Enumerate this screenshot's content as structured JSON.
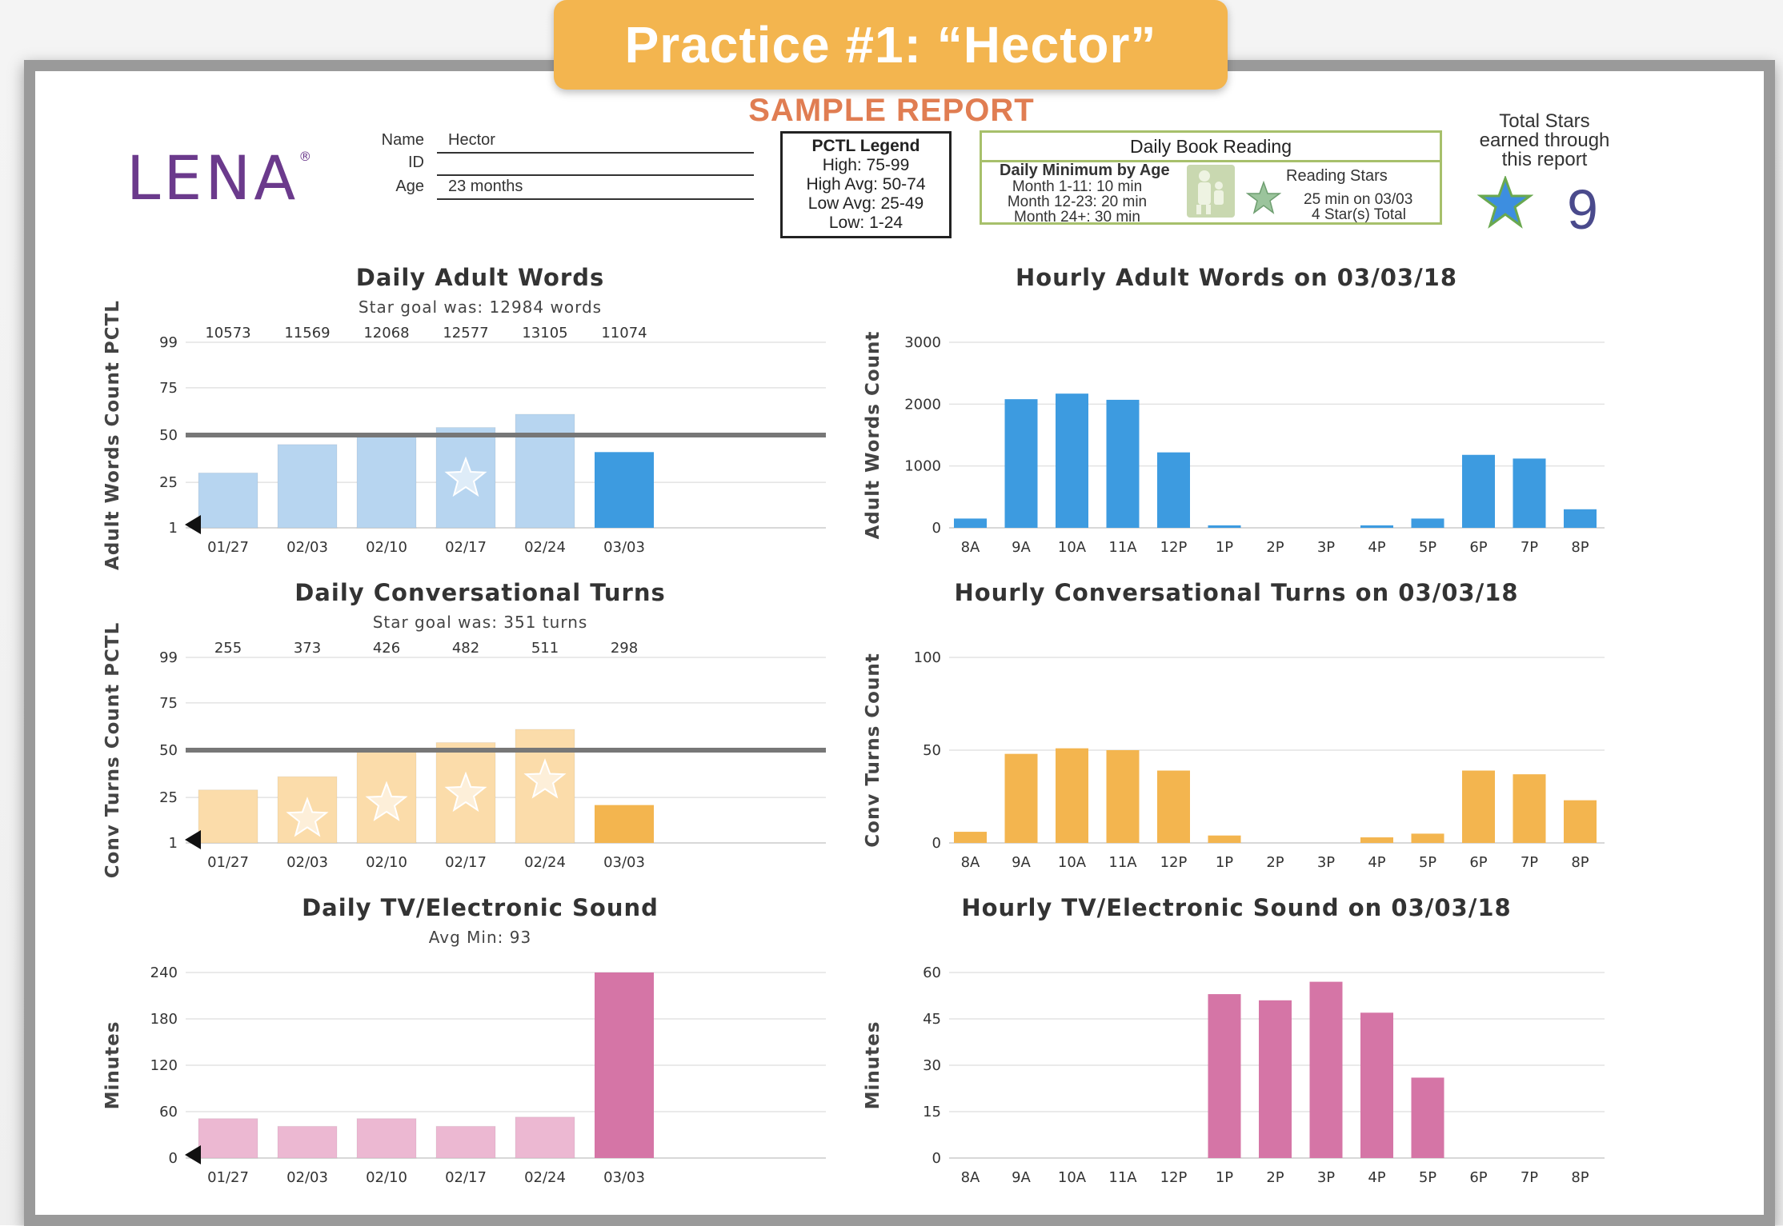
{
  "banner": {
    "title": "Practice #1: “Hector”"
  },
  "report": {
    "label": "SAMPLE REPORT",
    "logo": "LENA",
    "logo_mark": "®"
  },
  "child": {
    "name_label": "Name",
    "name": "Hector",
    "id_label": "ID",
    "id": "",
    "age_label": "Age",
    "age": "23 months"
  },
  "pctl_legend": {
    "title": "PCTL Legend",
    "rows": [
      "High: 75-99",
      "High Avg: 50-74",
      "Low Avg: 25-49",
      "Low: 1-24"
    ]
  },
  "book_reading": {
    "title": "Daily Book Reading",
    "min_title": "Daily Minimum by Age",
    "min_rows": [
      "Month 1-11: 10 min",
      "Month 12-23: 20 min",
      "Month 24+: 30 min"
    ],
    "stars_title": "Reading Stars",
    "stars_line1": "25 min on 03/03",
    "stars_line2": "4 Star(s) Total"
  },
  "total_stars": {
    "label_lines": [
      "Total Stars",
      "earned through",
      "this report"
    ],
    "value": "9",
    "icon": "star-icon"
  },
  "colors": {
    "blue_light": "#b7d5f0",
    "blue": "#3d9be0",
    "orange_light": "#fbdcaa",
    "orange": "#f3b54f",
    "pink_light": "#ecb8d2",
    "pink": "#d575a6",
    "goal_line": "#777777",
    "banner": "#f3b54f",
    "sample_report": "#e07d52"
  },
  "chart_data": [
    {
      "id": "daily-adult-words",
      "type": "bar",
      "title": "Daily Adult Words",
      "subtitle": "Star goal was: 12984 words",
      "ylabel": "Adult Words Count PCTL",
      "categories": [
        "01/27",
        "02/03",
        "02/10",
        "02/17",
        "02/24",
        "03/03"
      ],
      "values": [
        30,
        45,
        50,
        54,
        61,
        41
      ],
      "top_labels": [
        "10573",
        "11569",
        "12068",
        "12577",
        "13105",
        "11074"
      ],
      "stars": [
        false,
        false,
        false,
        true,
        false,
        false
      ],
      "yticks": [
        1,
        25,
        50,
        75,
        99
      ],
      "ylim": [
        1,
        99
      ],
      "goal_line": 50,
      "highlight_last": true,
      "color_scheme": "blue"
    },
    {
      "id": "hourly-adult-words",
      "type": "bar",
      "title": "Hourly Adult Words on 03/03/18",
      "ylabel": "Adult Words Count",
      "categories": [
        "8A",
        "9A",
        "10A",
        "11A",
        "12P",
        "1P",
        "2P",
        "3P",
        "4P",
        "5P",
        "6P",
        "7P",
        "8P"
      ],
      "values": [
        150,
        2080,
        2170,
        2070,
        1220,
        40,
        0,
        0,
        40,
        150,
        1180,
        1120,
        300
      ],
      "yticks": [
        0,
        1000,
        2000,
        3000
      ],
      "ylim": [
        0,
        3000
      ],
      "color_scheme": "blue"
    },
    {
      "id": "daily-conversational-turns",
      "type": "bar",
      "title": "Daily Conversational Turns",
      "subtitle": "Star goal was: 351 turns",
      "ylabel": "Conv Turns Count PCTL",
      "categories": [
        "01/27",
        "02/03",
        "02/10",
        "02/17",
        "02/24",
        "03/03"
      ],
      "values": [
        29,
        36,
        49,
        54,
        61,
        21
      ],
      "top_labels": [
        "255",
        "373",
        "426",
        "482",
        "511",
        "298"
      ],
      "stars": [
        false,
        true,
        true,
        true,
        true,
        false
      ],
      "yticks": [
        1,
        25,
        50,
        75,
        99
      ],
      "ylim": [
        1,
        99
      ],
      "goal_line": 50,
      "highlight_last": true,
      "color_scheme": "orange"
    },
    {
      "id": "hourly-conversational-turns",
      "type": "bar",
      "title": "Hourly Conversational Turns on 03/03/18",
      "ylabel": "Conv Turns Count",
      "categories": [
        "8A",
        "9A",
        "10A",
        "11A",
        "12P",
        "1P",
        "2P",
        "3P",
        "4P",
        "5P",
        "6P",
        "7P",
        "8P"
      ],
      "values": [
        6,
        48,
        51,
        50,
        39,
        4,
        0,
        0,
        3,
        5,
        39,
        37,
        23
      ],
      "yticks": [
        0,
        50,
        100
      ],
      "ylim": [
        0,
        100
      ],
      "color_scheme": "orange"
    },
    {
      "id": "daily-tv-electronic-sound",
      "type": "bar",
      "title": "Daily TV/Electronic Sound",
      "subtitle": "Avg Min: 93",
      "ylabel": "Minutes",
      "categories": [
        "01/27",
        "02/03",
        "02/10",
        "02/17",
        "02/24",
        "03/03"
      ],
      "values": [
        51,
        41,
        51,
        41,
        53,
        240
      ],
      "yticks": [
        0,
        60,
        120,
        180,
        240
      ],
      "ylim": [
        0,
        240
      ],
      "highlight_last": true,
      "color_scheme": "pink"
    },
    {
      "id": "hourly-tv-electronic-sound",
      "type": "bar",
      "title": "Hourly TV/Electronic Sound on 03/03/18",
      "ylabel": "Minutes",
      "categories": [
        "8A",
        "9A",
        "10A",
        "11A",
        "12P",
        "1P",
        "2P",
        "3P",
        "4P",
        "5P",
        "6P",
        "7P",
        "8P"
      ],
      "values": [
        0,
        0,
        0,
        0,
        0,
        53,
        51,
        57,
        47,
        26,
        0,
        0,
        0
      ],
      "yticks": [
        0,
        15,
        30,
        45,
        60
      ],
      "ylim": [
        0,
        60
      ],
      "color_scheme": "pink"
    }
  ]
}
